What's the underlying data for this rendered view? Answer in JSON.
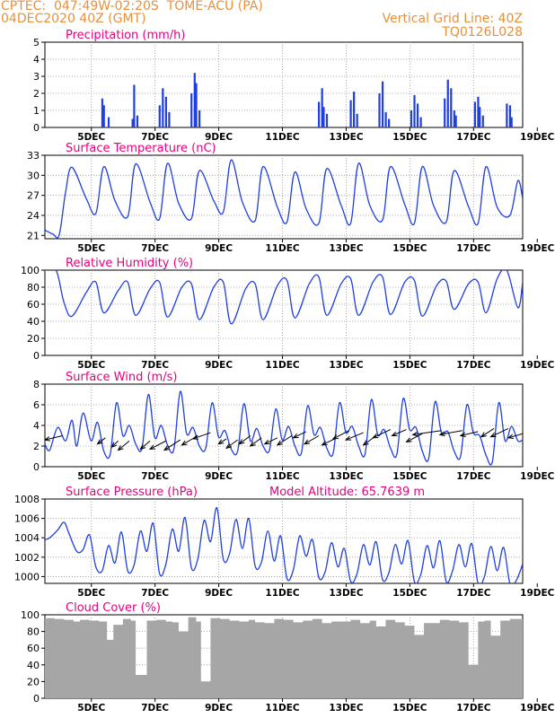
{
  "header": {
    "line1_left": "CPTEC:  047:49W-02:20S  TOME-ACU (PA)",
    "line2_left": "04DEC2020 40Z (GMT)",
    "line1_right": "Vertical Grid Line: 40Z",
    "line2_right": "TQ0126L028"
  },
  "colors": {
    "header": "#e8903a",
    "title": "#e6007e",
    "line": "#1f3fe0",
    "bar": "#1f3fe0",
    "cloud": "#a6a6a6",
    "grid": "#9a9a9a",
    "wind_arrow": "#000000"
  },
  "chart_data": [
    {
      "type": "bar",
      "title": "Precipitation (mm/h)",
      "ylim": [
        0,
        5
      ],
      "yticks": [
        0,
        1,
        2,
        3,
        4,
        5
      ],
      "xticks": [
        "5DEC",
        "7DEC",
        "9DEC",
        "11DEC",
        "13DEC",
        "15DEC",
        "17DEC",
        "19DEC"
      ],
      "x_units": "days since 04DEC2020 00Z",
      "bars": [
        [
          1.8,
          1.7
        ],
        [
          1.85,
          1.3
        ],
        [
          2.0,
          0.6
        ],
        [
          2.75,
          0.5
        ],
        [
          2.8,
          2.5
        ],
        [
          2.9,
          0.7
        ],
        [
          3.6,
          1.3
        ],
        [
          3.7,
          2.3
        ],
        [
          3.8,
          1.8
        ],
        [
          3.9,
          0.9
        ],
        [
          4.6,
          2.0
        ],
        [
          4.7,
          3.2
        ],
        [
          4.75,
          2.6
        ],
        [
          4.85,
          1.0
        ],
        [
          8.6,
          1.5
        ],
        [
          8.7,
          2.3
        ],
        [
          8.75,
          1.2
        ],
        [
          8.85,
          0.8
        ],
        [
          9.6,
          1.6
        ],
        [
          9.7,
          2.1
        ],
        [
          9.8,
          0.8
        ],
        [
          10.5,
          2.0
        ],
        [
          10.6,
          2.7
        ],
        [
          10.7,
          0.9
        ],
        [
          10.8,
          0.5
        ],
        [
          11.5,
          1.0
        ],
        [
          11.6,
          1.9
        ],
        [
          11.7,
          1.4
        ],
        [
          11.8,
          0.6
        ],
        [
          12.55,
          1.7
        ],
        [
          12.65,
          2.8
        ],
        [
          12.75,
          2.3
        ],
        [
          12.85,
          1.0
        ],
        [
          12.9,
          0.7
        ],
        [
          13.5,
          1.5
        ],
        [
          13.6,
          1.8
        ],
        [
          13.65,
          1.2
        ],
        [
          13.75,
          0.7
        ],
        [
          14.5,
          1.4
        ],
        [
          14.6,
          1.3
        ],
        [
          14.65,
          0.6
        ]
      ]
    },
    {
      "type": "line",
      "title": "Surface Temperature (nC)",
      "ylim": [
        20.5,
        33
      ],
      "yticks": [
        21,
        24,
        27,
        30,
        33
      ],
      "xticks": [
        "5DEC",
        "7DEC",
        "9DEC",
        "11DEC",
        "13DEC",
        "15DEC",
        "17DEC",
        "19DEC"
      ],
      "x_units": "days since 04DEC2020 00Z",
      "x": [
        0,
        0.25,
        0.45,
        0.65,
        0.85,
        1.3,
        1.6,
        1.85,
        2.2,
        2.6,
        2.85,
        3.3,
        3.6,
        3.85,
        4.2,
        4.6,
        4.85,
        5.3,
        5.6,
        5.85,
        6.2,
        6.6,
        6.85,
        7.3,
        7.6,
        7.85,
        8.2,
        8.6,
        8.85,
        9.3,
        9.6,
        9.85,
        10.2,
        10.6,
        10.85,
        11.3,
        11.6,
        11.85,
        12.2,
        12.6,
        12.85,
        13.3,
        13.6,
        13.85,
        14.2,
        14.6,
        14.85,
        15.0
      ],
      "y": [
        21.8,
        21.2,
        21.1,
        27.5,
        31.2,
        26.5,
        24.3,
        31.3,
        26.2,
        23.8,
        31.7,
        26.0,
        23.5,
        31.8,
        25.8,
        23.5,
        30.7,
        26.2,
        24.5,
        32.3,
        26.0,
        23.2,
        31.3,
        25.2,
        23.0,
        30.5,
        25.0,
        22.8,
        31.0,
        25.5,
        22.8,
        31.8,
        25.5,
        23.3,
        31.3,
        25.6,
        22.8,
        31.3,
        25.5,
        23.0,
        30.7,
        25.3,
        22.8,
        31.3,
        25.2,
        24.0,
        29.2,
        26.5
      ]
    },
    {
      "type": "line",
      "title": "Relative Humidity (%)",
      "ylim": [
        0,
        100
      ],
      "yticks": [
        0,
        20,
        40,
        60,
        80,
        100
      ],
      "xticks": [
        "5DEC",
        "7DEC",
        "9DEC",
        "11DEC",
        "13DEC",
        "15DEC",
        "17DEC",
        "19DEC"
      ],
      "x_units": "days since 04DEC2020 00Z",
      "x": [
        0,
        0.35,
        0.6,
        0.85,
        1.3,
        1.6,
        1.85,
        2.3,
        2.6,
        2.85,
        3.3,
        3.6,
        3.85,
        4.3,
        4.6,
        4.85,
        5.3,
        5.6,
        5.85,
        6.3,
        6.6,
        6.85,
        7.3,
        7.6,
        7.85,
        8.3,
        8.6,
        8.85,
        9.3,
        9.6,
        9.85,
        10.3,
        10.6,
        10.85,
        11.3,
        11.6,
        11.85,
        12.3,
        12.6,
        12.85,
        13.3,
        13.6,
        13.85,
        14.2,
        14.5,
        14.85,
        15.0
      ],
      "y": [
        100,
        100,
        62,
        46,
        74,
        86,
        50,
        76,
        86,
        47,
        78,
        86,
        45,
        80,
        84,
        42,
        80,
        86,
        37,
        78,
        84,
        42,
        82,
        88,
        44,
        84,
        92,
        47,
        84,
        90,
        47,
        86,
        92,
        48,
        86,
        88,
        46,
        82,
        87,
        54,
        84,
        86,
        50,
        90,
        100,
        56,
        86
      ]
    },
    {
      "type": "line",
      "title": "Surface Wind (m/s)",
      "ylim": [
        0,
        8
      ],
      "yticks": [
        0,
        2,
        4,
        6,
        8
      ],
      "xticks": [
        "5DEC",
        "7DEC",
        "9DEC",
        "11DEC",
        "13DEC",
        "15DEC",
        "17DEC",
        "19DEC"
      ],
      "x_units": "days since 04DEC2020 00Z",
      "x": [
        0,
        0.15,
        0.4,
        0.65,
        0.85,
        1.0,
        1.2,
        1.45,
        1.65,
        1.85,
        2.05,
        2.25,
        2.45,
        2.65,
        2.85,
        3.05,
        3.25,
        3.45,
        3.65,
        3.85,
        4.05,
        4.25,
        4.45,
        4.65,
        4.85,
        5.05,
        5.25,
        5.45,
        5.65,
        5.85,
        6.05,
        6.25,
        6.45,
        6.65,
        6.85,
        7.05,
        7.25,
        7.45,
        7.65,
        7.85,
        8.05,
        8.25,
        8.45,
        8.65,
        8.85,
        9.05,
        9.25,
        9.45,
        9.65,
        9.85,
        10.05,
        10.25,
        10.45,
        10.65,
        10.85,
        11.05,
        11.25,
        11.45,
        11.65,
        11.85,
        12.05,
        12.25,
        12.45,
        12.65,
        12.85,
        13.05,
        13.25,
        13.45,
        13.65,
        13.85,
        14.05,
        14.25,
        14.45,
        14.65,
        14.85,
        15.0
      ],
      "y": [
        2.2,
        1.6,
        3.8,
        2.5,
        4.5,
        2.0,
        5.2,
        2.5,
        4.3,
        1.5,
        1.2,
        6.2,
        3.0,
        4.0,
        2.2,
        1.8,
        7.0,
        2.8,
        4.0,
        2.1,
        1.7,
        7.3,
        3.2,
        3.8,
        2.0,
        1.8,
        6.2,
        2.9,
        3.5,
        1.7,
        1.5,
        6.1,
        2.5,
        3.7,
        2.0,
        1.6,
        5.6,
        2.6,
        3.9,
        2.0,
        1.3,
        5.9,
        3.1,
        3.8,
        1.8,
        1.3,
        6.2,
        3.3,
        3.9,
        2.0,
        1.2,
        6.5,
        3.1,
        3.6,
        1.8,
        1.2,
        6.6,
        3.6,
        3.8,
        1.5,
        0.8,
        6.3,
        3.3,
        3.4,
        1.5,
        1.0,
        6.0,
        3.3,
        3.0,
        1.1,
        0.5,
        6.2,
        2.5,
        3.9,
        2.5,
        2.6
      ],
      "wind_arrows": [
        {
          "x": 0.55,
          "y": 3.0,
          "dx": -0.55,
          "dy": -0.4
        },
        {
          "x": 1.9,
          "y": 2.8,
          "dx": -0.25,
          "dy": -0.6
        },
        {
          "x": 2.3,
          "y": 2.5,
          "dx": -0.2,
          "dy": -0.6
        },
        {
          "x": 2.65,
          "y": 2.5,
          "dx": -0.35,
          "dy": -0.9
        },
        {
          "x": 3.3,
          "y": 2.5,
          "dx": -0.3,
          "dy": -0.8
        },
        {
          "x": 3.8,
          "y": 2.5,
          "dx": -0.5,
          "dy": -0.8
        },
        {
          "x": 4.25,
          "y": 2.6,
          "dx": -0.5,
          "dy": -1.0
        },
        {
          "x": 4.8,
          "y": 3.0,
          "dx": -0.5,
          "dy": -0.9
        },
        {
          "x": 5.2,
          "y": 3.3,
          "dx": -0.55,
          "dy": -0.6
        },
        {
          "x": 5.7,
          "y": 2.7,
          "dx": -0.25,
          "dy": -0.5
        },
        {
          "x": 6.05,
          "y": 2.6,
          "dx": -0.35,
          "dy": -0.8
        },
        {
          "x": 6.45,
          "y": 3.0,
          "dx": -0.35,
          "dy": -0.8
        },
        {
          "x": 6.8,
          "y": 2.8,
          "dx": -0.35,
          "dy": -0.8
        },
        {
          "x": 7.3,
          "y": 2.8,
          "dx": -0.4,
          "dy": -0.6
        },
        {
          "x": 7.75,
          "y": 3.0,
          "dx": -0.45,
          "dy": -0.9
        },
        {
          "x": 8.2,
          "y": 3.4,
          "dx": -0.4,
          "dy": -0.6
        },
        {
          "x": 8.6,
          "y": 3.0,
          "dx": -0.45,
          "dy": -0.8
        },
        {
          "x": 9.1,
          "y": 2.7,
          "dx": -0.4,
          "dy": -0.6
        },
        {
          "x": 9.55,
          "y": 3.5,
          "dx": -0.5,
          "dy": -0.8
        },
        {
          "x": 10.0,
          "y": 3.3,
          "dx": -0.55,
          "dy": -0.7
        },
        {
          "x": 10.4,
          "y": 3.0,
          "dx": -0.4,
          "dy": -0.9
        },
        {
          "x": 10.85,
          "y": 3.6,
          "dx": -0.55,
          "dy": -0.8
        },
        {
          "x": 11.35,
          "y": 3.6,
          "dx": -0.45,
          "dy": -0.6
        },
        {
          "x": 11.85,
          "y": 3.2,
          "dx": -0.5,
          "dy": -0.8
        },
        {
          "x": 12.45,
          "y": 3.5,
          "dx": -0.9,
          "dy": -0.4
        },
        {
          "x": 13.1,
          "y": 3.5,
          "dx": -0.7,
          "dy": -0.4
        },
        {
          "x": 13.6,
          "y": 3.4,
          "dx": -0.55,
          "dy": -0.4
        },
        {
          "x": 14.1,
          "y": 3.7,
          "dx": -0.4,
          "dy": -0.8
        },
        {
          "x": 14.55,
          "y": 3.7,
          "dx": -0.55,
          "dy": -0.8
        },
        {
          "x": 15.0,
          "y": 3.2,
          "dx": -0.45,
          "dy": -0.4
        }
      ]
    },
    {
      "type": "line",
      "title": "Surface Pressure (hPa)",
      "annotation": "Model Altitude: 65.7639 m",
      "ylim": [
        999.3,
        1008
      ],
      "yticks": [
        1000,
        1002,
        1004,
        1006,
        1008
      ],
      "xticks": [
        "5DEC",
        "7DEC",
        "9DEC",
        "11DEC",
        "13DEC",
        "15DEC",
        "17DEC",
        "19DEC"
      ],
      "x_units": "days since 04DEC2020 00Z",
      "x": [
        0,
        0.15,
        0.4,
        0.6,
        0.75,
        1.0,
        1.2,
        1.4,
        1.6,
        1.8,
        2.0,
        2.2,
        2.4,
        2.6,
        2.8,
        3.0,
        3.2,
        3.4,
        3.6,
        3.8,
        4.0,
        4.2,
        4.4,
        4.6,
        4.8,
        5.0,
        5.2,
        5.4,
        5.6,
        5.8,
        6.0,
        6.2,
        6.4,
        6.6,
        6.8,
        7.0,
        7.2,
        7.4,
        7.6,
        7.8,
        8.0,
        8.2,
        8.4,
        8.6,
        8.8,
        9.0,
        9.2,
        9.4,
        9.6,
        9.8,
        10.0,
        10.2,
        10.4,
        10.6,
        10.8,
        11.0,
        11.2,
        11.4,
        11.6,
        11.8,
        12.0,
        12.2,
        12.4,
        12.6,
        12.8,
        13.0,
        13.2,
        13.4,
        13.6,
        13.8,
        14.0,
        14.2,
        14.4,
        14.6,
        14.8,
        15.0
      ],
      "y": [
        1003.8,
        1004.0,
        1004.8,
        1005.6,
        1004.5,
        1002.6,
        1002.8,
        1004.3,
        1001.0,
        1000.6,
        1003.2,
        1001.4,
        1004.6,
        1000.6,
        1001.2,
        1004.7,
        1002.6,
        1005.5,
        1000.3,
        1001.3,
        1004.9,
        1002.6,
        1006.1,
        1000.9,
        1001.8,
        1005.8,
        1003.6,
        1007.1,
        1001.8,
        1002.4,
        1005.9,
        1002.9,
        1006.0,
        1001.1,
        1001.5,
        1004.7,
        1001.6,
        1004.2,
        999.8,
        1000.7,
        1004.2,
        1002.1,
        1003.8,
        999.9,
        1000.5,
        1003.5,
        1001.0,
        1002.9,
        999.5,
        1000.3,
        1003.3,
        1001.2,
        1003.6,
        999.7,
        1000.4,
        1003.3,
        1001.3,
        1003.7,
        999.5,
        1000.2,
        1003.2,
        1000.9,
        1003.7,
        999.5,
        1000.6,
        1003.3,
        1001.0,
        1003.4,
        999.3,
        1000.0,
        1003.1,
        1000.6,
        1003.0,
        999.3,
        999.6,
        1001.3
      ]
    },
    {
      "type": "bar",
      "title": "Cloud Cover (%)",
      "ylim": [
        0,
        100
      ],
      "yticks": [
        0,
        20,
        40,
        60,
        80,
        100
      ],
      "xticks": [
        "5DEC",
        "7DEC",
        "9DEC",
        "11DEC",
        "13DEC",
        "15DEC",
        "17DEC",
        "19DEC"
      ],
      "x_units": "days since 04DEC2020 00Z",
      "x": [
        0,
        0.3,
        0.6,
        0.9,
        1.1,
        1.4,
        1.7,
        1.95,
        2.15,
        2.45,
        2.7,
        2.85,
        3.2,
        3.5,
        3.8,
        4.0,
        4.2,
        4.5,
        4.75,
        4.9,
        5.2,
        5.5,
        5.8,
        6.1,
        6.4,
        6.6,
        6.9,
        7.2,
        7.5,
        7.8,
        8.1,
        8.4,
        8.7,
        9.0,
        9.3,
        9.6,
        9.9,
        10.2,
        10.4,
        10.7,
        11.0,
        11.3,
        11.6,
        11.9,
        12.2,
        12.4,
        12.7,
        13.0,
        13.3,
        13.6,
        13.8,
        14.0,
        14.3,
        14.6,
        15.0
      ],
      "values": [
        96,
        95,
        94,
        92,
        94,
        93,
        92,
        70,
        88,
        95,
        93,
        28,
        93,
        94,
        92,
        91,
        80,
        97,
        92,
        20,
        96,
        95,
        93,
        92,
        94,
        91,
        90,
        95,
        94,
        91,
        93,
        95,
        90,
        92,
        92,
        94,
        90,
        93,
        86,
        94,
        91,
        87,
        76,
        90,
        90,
        94,
        93,
        91,
        40,
        92,
        93,
        75,
        93,
        95,
        97
      ]
    }
  ]
}
